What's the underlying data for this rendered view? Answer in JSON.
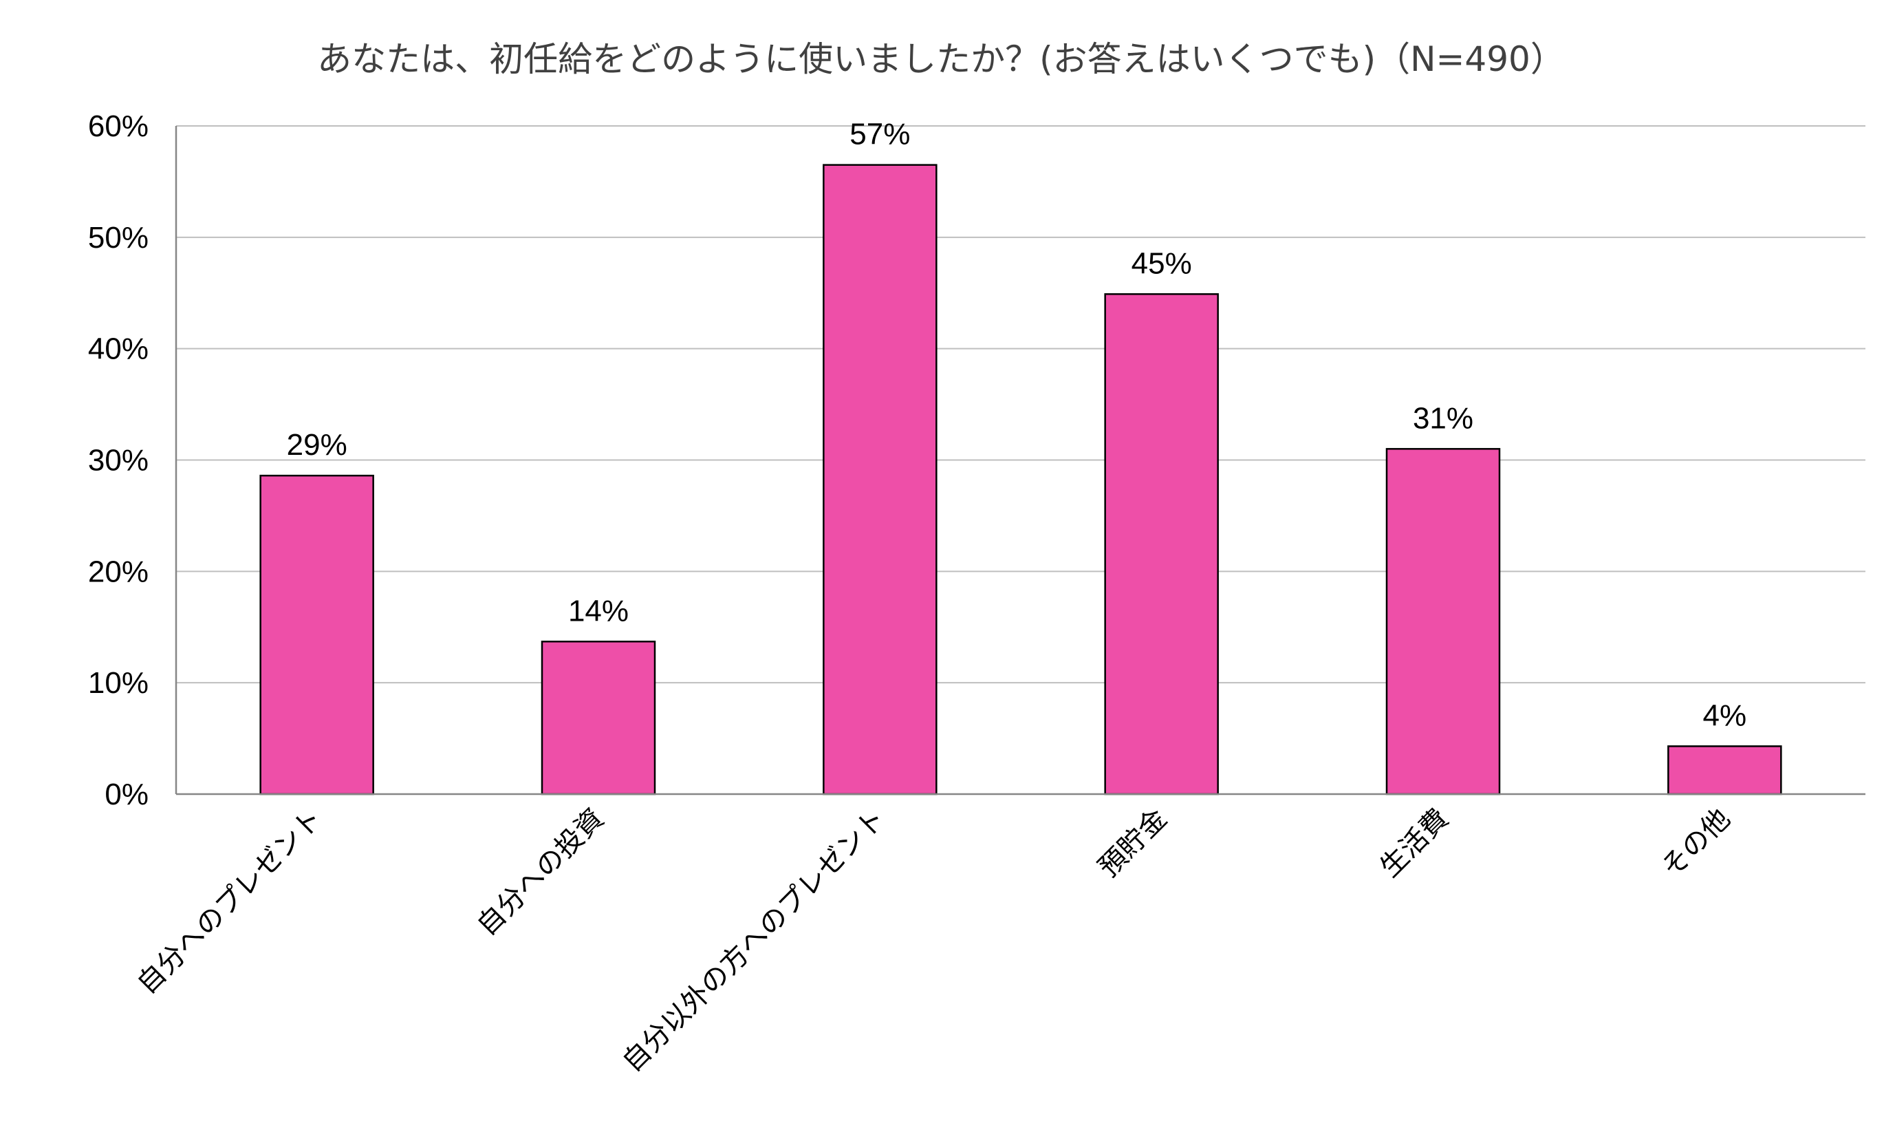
{
  "chart_data": {
    "type": "bar",
    "title": "あなたは、初任給をどのように使いましたか？(お答えはいくつでも)（N=490）",
    "xlabel": "",
    "ylabel": "",
    "categories": [
      "自分へのプレゼント",
      "自分への投資",
      "自分以外の方へのプレゼント",
      "預貯金",
      "生活費",
      "その他"
    ],
    "values": [
      28.6,
      13.7,
      56.5,
      44.9,
      31.0,
      4.3
    ],
    "data_labels": [
      "29%",
      "14%",
      "57%",
      "45%",
      "31%",
      "4%"
    ],
    "ylim": [
      0,
      60
    ],
    "yticks": [
      "0%",
      "10%",
      "20%",
      "30%",
      "40%",
      "50%",
      "60%"
    ],
    "grid": true,
    "legend": "none",
    "colors": {
      "bar_fill": "#EE4FA8",
      "bar_stroke": "#000000",
      "grid": "#BFBFBF",
      "axis": "#868686",
      "title": "#404040"
    }
  }
}
